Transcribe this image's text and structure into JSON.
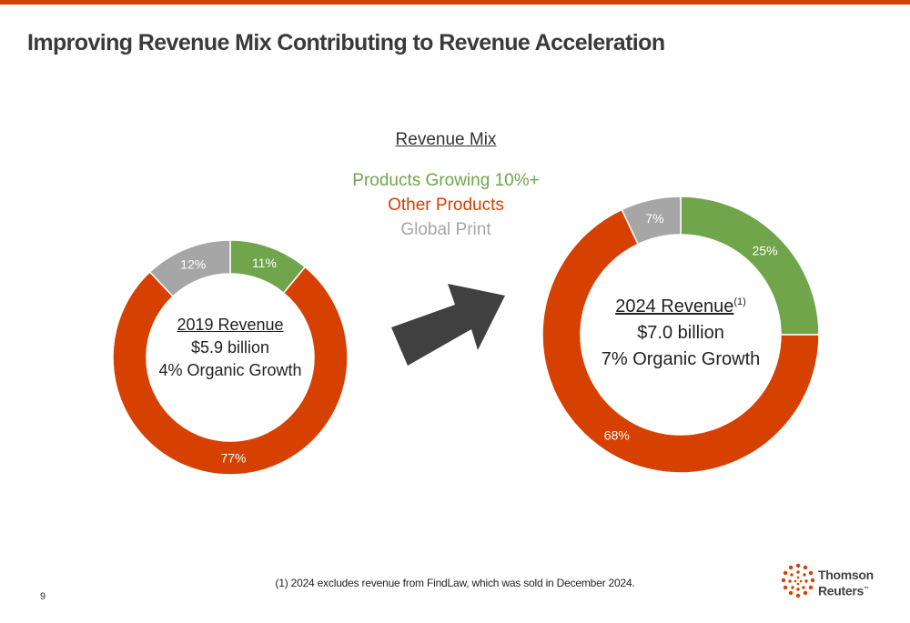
{
  "page": {
    "title": "Improving Revenue Mix Contributing to Revenue Acceleration",
    "page_number": "9"
  },
  "legend": {
    "title": "Revenue Mix",
    "entries": [
      {
        "label": "Products Growing 10%+",
        "color": "#70a54b"
      },
      {
        "label": "Other Products",
        "color": "#d64000"
      },
      {
        "label": "Global Print",
        "color": "#a6a6a6"
      }
    ]
  },
  "chart_data": [
    {
      "type": "pie",
      "donut": true,
      "categories": [
        "Products Growing 10%+",
        "Other Products",
        "Global Print"
      ],
      "values": [
        11,
        77,
        12
      ],
      "labels": [
        "11%",
        "77%",
        "12%"
      ],
      "colors": [
        "#70a54b",
        "#d64000",
        "#a6a6a6"
      ],
      "center": {
        "heading": "2019 Revenue",
        "value": "$5.9 billion",
        "growth": "4% Organic Growth"
      }
    },
    {
      "type": "pie",
      "donut": true,
      "categories": [
        "Products Growing 10%+",
        "Other Products",
        "Global Print"
      ],
      "values": [
        25,
        68,
        7
      ],
      "labels": [
        "25%",
        "68%",
        "7%"
      ],
      "colors": [
        "#70a54b",
        "#d64000",
        "#a6a6a6"
      ],
      "center": {
        "heading": "2024 Revenue",
        "footnote_mark": "(1)",
        "value": "$7.0 billion",
        "growth": "7% Organic Growth"
      }
    }
  ],
  "footnote": "(1) 2024 excludes revenue from FindLaw, which was sold in December 2024.",
  "logo": {
    "line1": "Thomson",
    "line2": "Reuters",
    "tm": "™",
    "color": "#d64000"
  }
}
